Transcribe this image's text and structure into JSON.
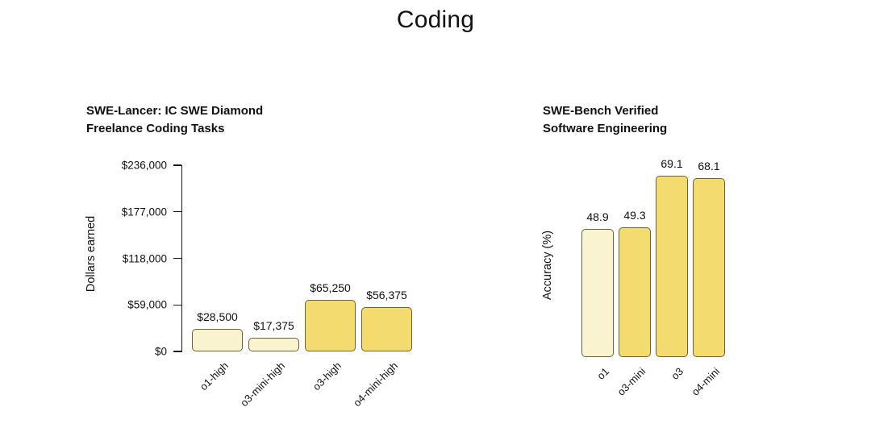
{
  "page": {
    "title": "Coding"
  },
  "colors": {
    "background": "#ffffff",
    "bar_light": "#faf3cf",
    "bar_dark": "#f3dc6d",
    "bar_border": "#6e6136",
    "axis": "#1a1a1a",
    "text": "#111111"
  },
  "chart_data": [
    {
      "type": "bar",
      "title": "SWE-Lancer: IC SWE Diamond\nFreelance Coding Tasks",
      "xlabel": "",
      "ylabel": "Dollars earned",
      "categories": [
        "o1-high",
        "o3-mini-high",
        "o3-high",
        "o4-mini-high"
      ],
      "values": [
        28500,
        17375,
        65250,
        56375
      ],
      "value_labels": [
        "$28,500",
        "$17,375",
        "$65,250",
        "$56,375"
      ],
      "bar_colors": [
        "#faf3cf",
        "#faf3cf",
        "#f3dc6d",
        "#f3dc6d"
      ],
      "ylim": [
        0,
        236000
      ],
      "yticks": [
        0,
        59000,
        118000,
        177000,
        236000
      ],
      "ytick_labels": [
        "$0",
        "$59,000",
        "$118,000",
        "$177,000",
        "$236,000"
      ],
      "grid": false,
      "legend": "none"
    },
    {
      "type": "bar",
      "title": "SWE-Bench Verified\nSoftware Engineering",
      "xlabel": "",
      "ylabel": "Accuracy (%)",
      "categories": [
        "o1",
        "o3-mini",
        "o3",
        "o4-mini"
      ],
      "values": [
        48.9,
        49.3,
        69.1,
        68.1
      ],
      "value_labels": [
        "48.9",
        "49.3",
        "69.1",
        "68.1"
      ],
      "bar_colors": [
        "#faf3cf",
        "#f3dc6d",
        "#f3dc6d",
        "#f3dc6d"
      ],
      "ylim": [
        0,
        73
      ],
      "yticks": [],
      "ytick_labels": [],
      "grid": false,
      "legend": "none"
    }
  ]
}
